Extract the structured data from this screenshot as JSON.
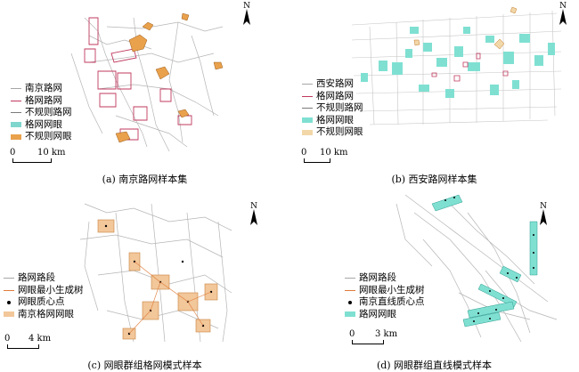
{
  "panels": [
    {
      "id": "nanjing",
      "caption": "(a) 南京路网样本集",
      "north": "N",
      "scale": {
        "zero": "0",
        "label": "10 km"
      },
      "legend": [
        {
          "type": "line",
          "color": "#a6a6a6",
          "label": "南京路网"
        },
        {
          "type": "line",
          "color": "#c0395e",
          "label": "格网路网"
        },
        {
          "type": "line",
          "color": "#7a7a7a",
          "label": "不规则路网"
        },
        {
          "type": "fill",
          "color": "#7fd6cc",
          "label": "格网网眼"
        },
        {
          "type": "fill",
          "color": "#e9a14c",
          "label": "不规则网眼"
        }
      ]
    },
    {
      "id": "xian",
      "caption": "(b) 西安路网样本集",
      "north": "N",
      "scale": {
        "zero": "0",
        "label": "10 km"
      },
      "legend": [
        {
          "type": "line",
          "color": "#a6a6a6",
          "label": "西安路网"
        },
        {
          "type": "line",
          "color": "#c0395e",
          "label": "格网路网"
        },
        {
          "type": "line",
          "color": "#7a7a7a",
          "label": "不规则路网"
        },
        {
          "type": "fill",
          "color": "#7fe0d2",
          "label": "格网网眼"
        },
        {
          "type": "fill",
          "color": "#f2d7a8",
          "label": "不规则网眼"
        }
      ]
    },
    {
      "id": "grid-mode",
      "caption": "(c) 网眼群组格网模式样本",
      "north": "N",
      "scale": {
        "zero": "0",
        "label": "4 km"
      },
      "legend": [
        {
          "type": "line",
          "color": "#a6a6a6",
          "label": "路网路段"
        },
        {
          "type": "line",
          "color": "#e07b39",
          "label": "网眼最小生成树"
        },
        {
          "type": "dot",
          "color": "#000000",
          "label": "网眼质心点"
        },
        {
          "type": "fill",
          "color": "#f2c79a",
          "label": "南京格网网眼"
        }
      ]
    },
    {
      "id": "linear-mode",
      "caption": "(d) 网眼群组直线模式样本",
      "north": "N",
      "scale": {
        "zero": "0",
        "label": "3 km"
      },
      "legend": [
        {
          "type": "line",
          "color": "#a6a6a6",
          "label": "路网路段"
        },
        {
          "type": "line",
          "color": "#e07b39",
          "label": "网眼最小生成树"
        },
        {
          "type": "dot",
          "color": "#000000",
          "label": "南京直线质心点"
        },
        {
          "type": "fill",
          "color": "#7fe0d2",
          "label": "路网网眼"
        }
      ]
    }
  ]
}
